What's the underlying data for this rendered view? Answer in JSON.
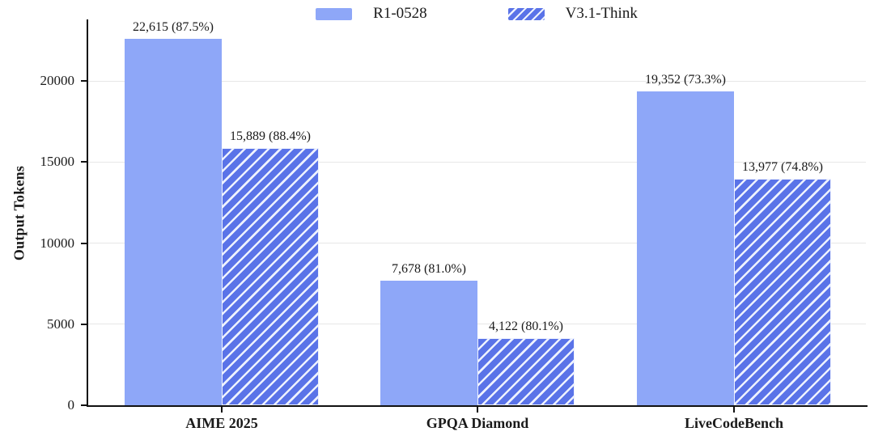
{
  "chart_data": {
    "type": "bar",
    "title": "",
    "categories": [
      "AIME 2025",
      "GPQA Diamond",
      "LiveCodeBench"
    ],
    "series": [
      {
        "name": "R1-0528",
        "style": "solid",
        "values": [
          22615,
          7678,
          19352
        ],
        "labels": [
          "22,615 (87.5%)",
          "7,678 (81.0%)",
          "19,352 (73.3%)"
        ]
      },
      {
        "name": "V3.1-Think",
        "style": "hatched",
        "values": [
          15889,
          4122,
          13977
        ],
        "labels": [
          "15,889 (88.4%)",
          "4,122 (80.1%)",
          "13,977 (74.8%)"
        ]
      }
    ],
    "xlabel": "",
    "ylabel": "Output Tokens",
    "yticks": [
      0,
      5000,
      10000,
      15000,
      20000
    ],
    "ylim": [
      0,
      23800
    ],
    "grid": true,
    "legend_position": "top-center",
    "colors": {
      "solid_bar": "#8ea7f8",
      "hatched_bar_base": "#5a73e8",
      "hatch_stripe": "#eef2fe",
      "axis": "#111111",
      "gridline": "#e7e7e7",
      "text": "#1a1a1a"
    }
  }
}
